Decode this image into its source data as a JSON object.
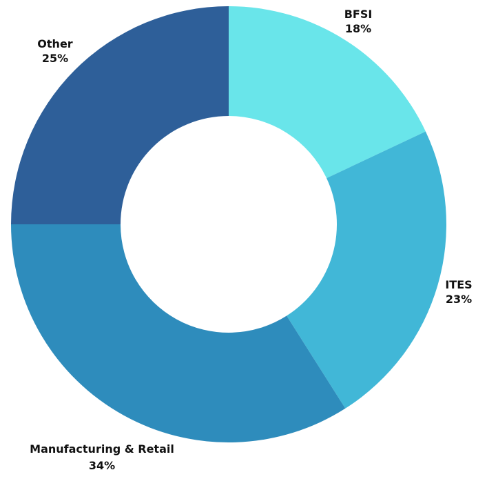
{
  "chart_data": {
    "type": "pie",
    "donut": true,
    "categories": [
      "BFSI",
      "ITES",
      "Manufacturing & Retail",
      "Other"
    ],
    "values": [
      18,
      23,
      34,
      25
    ],
    "value_labels": [
      "18%",
      "23%",
      "34%",
      "25%"
    ],
    "colors": [
      "#69E5EA",
      "#41B7D7",
      "#2E8CBC",
      "#2E5F99"
    ],
    "start_angle_deg": 0,
    "direction": "clockwise",
    "legend": "none"
  }
}
